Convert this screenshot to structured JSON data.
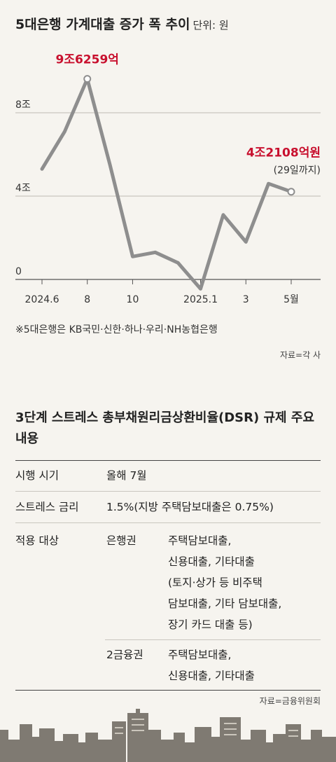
{
  "chart_data": {
    "type": "line",
    "title": "5대은행 가계대출 증가 폭 추이",
    "unit_label": "단위: 원",
    "y_tick_labels": [
      "8조",
      "4조",
      "0"
    ],
    "y_ticks": [
      8,
      4,
      0
    ],
    "x_tick_labels": [
      "2024.6",
      "8",
      "10",
      "2025.1",
      "3",
      "5월"
    ],
    "x_tick_index": [
      0,
      2,
      4,
      7,
      9,
      11
    ],
    "x": [
      "2024.6",
      "2024.7",
      "2024.8",
      "2024.9",
      "2024.10",
      "2024.11",
      "2024.12",
      "2025.1",
      "2025.2",
      "2025.3",
      "2025.4",
      "2025.5"
    ],
    "series": [
      {
        "values": [
          5.3,
          7.1,
          9.6259,
          5.5,
          1.1,
          1.3,
          0.8,
          -0.45,
          3.1,
          1.8,
          4.6,
          4.2108
        ]
      }
    ],
    "ylim": [
      -0.6,
      10
    ],
    "grid": true,
    "annotations": [
      {
        "index": 2,
        "text": "9조6259억"
      },
      {
        "index": 11,
        "text": "4조2108억원",
        "subtext": "(29일까지)"
      }
    ],
    "colors": {
      "line": "#8e8e8e",
      "annotation": "#c8102e",
      "grid": "#bdbab3"
    }
  },
  "footnote": "※5대은행은 KB국민·신한·하나·우리·NH농협은행",
  "source1": "자료=각 사",
  "dsr": {
    "title": "3단계 스트레스 총부채원리금상환비율(DSR) 규제 주요 내용",
    "rows": [
      {
        "label": "시행 시기",
        "value": "올해 7월"
      },
      {
        "label": "스트레스 금리",
        "value": "1.5%(지방 주택담보대출은 0.75%)"
      },
      {
        "label": "적용 대상",
        "groups": [
          {
            "name": "은행권",
            "lines": [
              "주택담보대출,",
              "신용대출, 기타대출",
              "(토지·상가 등 비주택",
              "담보대출, 기타 담보대출,",
              "장기 카드 대출 등)"
            ]
          },
          {
            "name": "2금융권",
            "lines": [
              "주택담보대출,",
              "신용대출, 기타대출"
            ]
          }
        ]
      }
    ]
  },
  "source2": "자료=금융위원회"
}
